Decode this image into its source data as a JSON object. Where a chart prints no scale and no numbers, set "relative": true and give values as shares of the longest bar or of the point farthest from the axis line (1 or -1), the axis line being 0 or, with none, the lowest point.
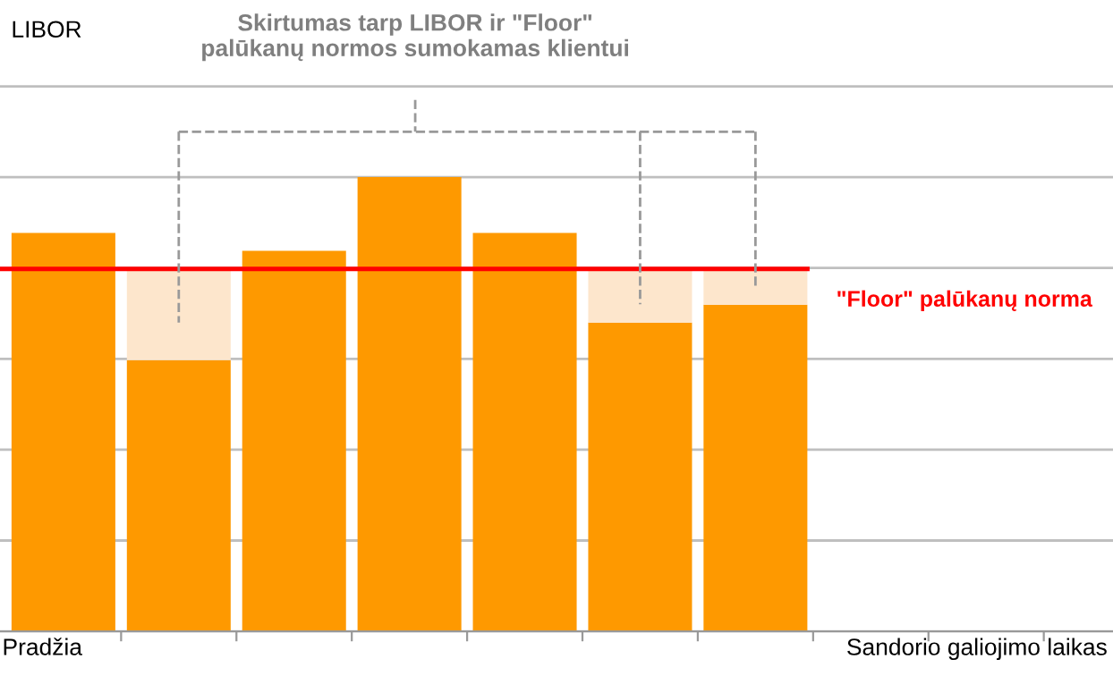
{
  "chart_data": {
    "type": "bar",
    "relative": true,
    "stacked": true,
    "categories": [
      null,
      null,
      null,
      null,
      null,
      null,
      null
    ],
    "series": [
      {
        "color": "#fe9900",
        "values": [
          0.877,
          0.597,
          0.838,
          1,
          0.877,
          0.68,
          0.719
        ]
      },
      {
        "color": "#fde6cc",
        "values": [
          0,
          0.2,
          0,
          0,
          0,
          0.118,
          0.079
        ]
      }
    ],
    "ref_lines": [
      {
        "axis": "y",
        "value": 0.798,
        "label": "\"Floor\" palūkanų norma",
        "color": "#ff0000"
      }
    ],
    "annotations": [
      "Skirtumas tarp LIBOR ir \"Floor\"\npalūkanų normos sumokamas klientui",
      "Pradžia",
      "Sandorio galiojimo laikas",
      "LIBOR"
    ],
    "grid": "y"
  }
}
